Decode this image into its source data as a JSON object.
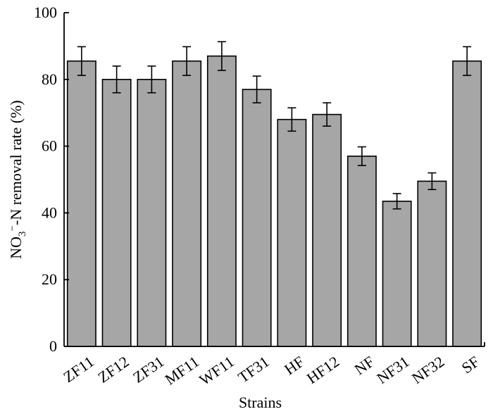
{
  "chart_data": {
    "type": "bar",
    "xlabel": "Strains",
    "ylabel": {
      "prefix": "NO",
      "subscript": "3",
      "superscript": "−",
      "suffix": "-N removal rate (%)"
    },
    "ylim": [
      0,
      100
    ],
    "yticks": [
      0,
      20,
      40,
      60,
      80,
      100
    ],
    "categories": [
      "ZF11",
      "ZF12",
      "ZF31",
      "MF11",
      "WF11",
      "TF31",
      "HF",
      "HF12",
      "NF",
      "NF31",
      "NF32",
      "SF"
    ],
    "values": [
      85.5,
      80.0,
      80.0,
      85.5,
      87.0,
      77.0,
      68.0,
      69.5,
      57.0,
      43.5,
      49.5,
      85.5
    ],
    "errors": [
      4.3,
      4.0,
      4.0,
      4.3,
      4.3,
      4.0,
      3.5,
      3.5,
      2.8,
      2.3,
      2.5,
      4.3
    ],
    "grid": false,
    "bar_color": "#a6a6a6"
  }
}
